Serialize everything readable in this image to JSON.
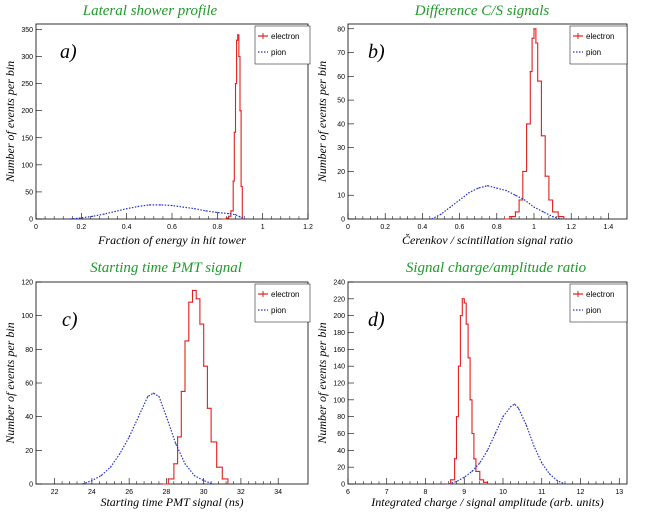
{
  "chart_data": [
    {
      "type": "line",
      "panel": "a)",
      "title": "Lateral shower profile",
      "xlabel": "Fraction of energy in hit tower",
      "ylabel": "Number of events per bin",
      "xlim": [
        0,
        1.2
      ],
      "ylim": [
        0,
        360
      ],
      "xticks": [
        0,
        0.2,
        0.4,
        0.6,
        0.8,
        1,
        1.2
      ],
      "xtick_labels": [
        "0",
        "0.2",
        "0.4",
        "0.6",
        "0.8",
        "1",
        "1.2"
      ],
      "yticks": [
        0,
        50,
        100,
        150,
        200,
        250,
        300,
        350
      ],
      "legend_position": "top-right",
      "series": [
        {
          "name": "electron",
          "color": "#e0201e",
          "style": "step",
          "x": [
            0.82,
            0.84,
            0.85,
            0.86,
            0.87,
            0.875,
            0.88,
            0.885,
            0.89,
            0.895,
            0.9,
            0.905,
            0.91
          ],
          "y": [
            0,
            2,
            5,
            15,
            70,
            160,
            250,
            330,
            340,
            300,
            200,
            60,
            0
          ]
        },
        {
          "name": "pion",
          "color": "#2233cc",
          "style": "dotted",
          "x": [
            0.15,
            0.2,
            0.25,
            0.3,
            0.35,
            0.4,
            0.45,
            0.5,
            0.55,
            0.6,
            0.65,
            0.7,
            0.75,
            0.8,
            0.85,
            0.88,
            0.9,
            0.92
          ],
          "y": [
            0,
            2,
            5,
            9,
            14,
            19,
            23,
            26,
            26,
            25,
            22,
            19,
            15,
            12,
            10,
            8,
            4,
            0
          ]
        }
      ]
    },
    {
      "type": "line",
      "panel": "b)",
      "title": "Difference C/S signals",
      "xlabel": "Čerenkov / scintillation signal ratio",
      "ylabel": "Number of events per bin",
      "xlim": [
        0,
        1.5
      ],
      "ylim": [
        0,
        82
      ],
      "xticks": [
        0,
        0.2,
        0.4,
        0.6,
        0.8,
        1,
        1.2,
        1.4
      ],
      "xtick_labels": [
        "0",
        "0.2",
        "0.4",
        "0.6",
        "0.8",
        "1",
        "1.2",
        "1.4"
      ],
      "yticks": [
        0,
        10,
        20,
        30,
        40,
        50,
        60,
        70,
        80
      ],
      "legend_position": "top-right",
      "series": [
        {
          "name": "electron",
          "color": "#e0201e",
          "style": "step",
          "x": [
            0.84,
            0.87,
            0.9,
            0.92,
            0.94,
            0.96,
            0.98,
            0.99,
            1.0,
            1.01,
            1.02,
            1.04,
            1.06,
            1.08,
            1.1,
            1.13,
            1.16
          ],
          "y": [
            0,
            1,
            3,
            8,
            20,
            40,
            62,
            76,
            80,
            74,
            58,
            35,
            18,
            8,
            3,
            1,
            0
          ]
        },
        {
          "name": "pion",
          "color": "#2233cc",
          "style": "dotted",
          "x": [
            0.45,
            0.5,
            0.55,
            0.6,
            0.65,
            0.7,
            0.75,
            0.8,
            0.85,
            0.9,
            0.95,
            1.0,
            1.05,
            1.1,
            1.15
          ],
          "y": [
            0,
            2,
            5,
            8,
            11,
            13,
            14,
            13,
            12,
            10,
            8,
            5,
            3,
            1,
            0
          ]
        }
      ]
    },
    {
      "type": "line",
      "panel": "c)",
      "title": "Starting time PMT signal",
      "xlabel": "Starting time PMT signal (ns)",
      "ylabel": "Number of events per bin",
      "xlim": [
        21,
        35.6
      ],
      "ylim": [
        0,
        120
      ],
      "xticks": [
        22,
        24,
        26,
        28,
        30,
        32,
        34
      ],
      "xtick_labels": [
        "22",
        "24",
        "26",
        "28",
        "30",
        "32",
        "34"
      ],
      "yticks": [
        0,
        20,
        40,
        60,
        80,
        100,
        120
      ],
      "legend_position": "top-right",
      "series": [
        {
          "name": "electron",
          "color": "#e0201e",
          "style": "step",
          "x": [
            27.8,
            28.1,
            28.4,
            28.6,
            28.8,
            29.0,
            29.2,
            29.4,
            29.6,
            29.8,
            30.0,
            30.2,
            30.4,
            30.7,
            31.0,
            31.3
          ],
          "y": [
            0,
            3,
            12,
            28,
            55,
            85,
            108,
            115,
            110,
            95,
            70,
            45,
            25,
            10,
            3,
            0
          ]
        },
        {
          "name": "pion",
          "color": "#2233cc",
          "style": "dotted",
          "x": [
            23.5,
            24,
            24.5,
            25,
            25.5,
            26,
            26.5,
            27,
            27.3,
            27.6,
            28,
            28.5,
            29,
            29.5,
            30,
            30.5
          ],
          "y": [
            0,
            2,
            5,
            10,
            18,
            28,
            40,
            52,
            54,
            52,
            40,
            24,
            12,
            5,
            2,
            0
          ]
        }
      ]
    },
    {
      "type": "line",
      "panel": "d)",
      "title": "Signal charge/amplitude ratio",
      "xlabel": "Integrated charge / signal amplitude (arb. units)",
      "ylabel": "Number of events per bin",
      "xlim": [
        6,
        13.2
      ],
      "ylim": [
        0,
        240
      ],
      "xticks": [
        6,
        7,
        8,
        9,
        10,
        11,
        12,
        13
      ],
      "xtick_labels": [
        "6",
        "7",
        "8",
        "9",
        "10",
        "11",
        "12",
        "13"
      ],
      "yticks": [
        0,
        20,
        40,
        60,
        80,
        100,
        120,
        140,
        160,
        180,
        200,
        220,
        240
      ],
      "legend_position": "top-right",
      "series": [
        {
          "name": "electron",
          "color": "#e0201e",
          "style": "step",
          "x": [
            8.55,
            8.65,
            8.75,
            8.8,
            8.85,
            8.9,
            8.95,
            9.0,
            9.05,
            9.1,
            9.15,
            9.2,
            9.25,
            9.3,
            9.4,
            9.5,
            9.6
          ],
          "y": [
            0,
            5,
            30,
            80,
            140,
            200,
            220,
            215,
            190,
            150,
            100,
            60,
            30,
            15,
            5,
            2,
            0
          ]
        },
        {
          "name": "pion",
          "color": "#2233cc",
          "style": "dotted",
          "x": [
            8.6,
            8.8,
            9.0,
            9.2,
            9.4,
            9.6,
            9.8,
            10.0,
            10.2,
            10.3,
            10.4,
            10.6,
            10.8,
            11.0,
            11.2,
            11.4,
            11.6
          ],
          "y": [
            0,
            3,
            8,
            15,
            25,
            40,
            60,
            80,
            92,
            95,
            90,
            70,
            45,
            25,
            12,
            4,
            0
          ]
        }
      ]
    }
  ]
}
